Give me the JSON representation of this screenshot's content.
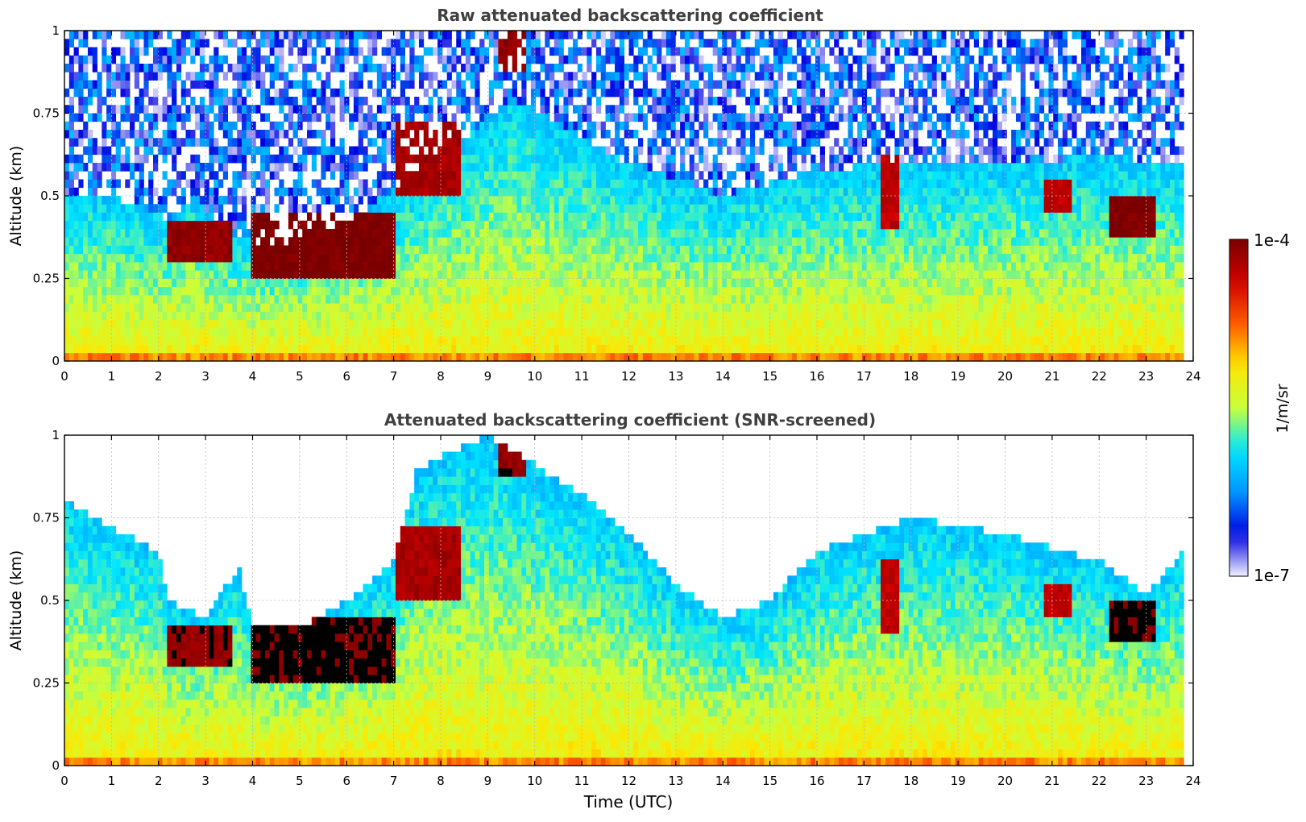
{
  "colors": {
    "title": "#404040",
    "grid": "#bbbbbb",
    "colormap": [
      "#f1f1ff",
      "#0000e0",
      "#0096ff",
      "#00e6ff",
      "#c8ff3c",
      "#ffe600",
      "#ff5a00",
      "#d00000",
      "#7a0000"
    ],
    "saturated": "#000000"
  },
  "chart_data": [
    {
      "type": "heatmap",
      "title": "Raw attenuated backscattering coefficient",
      "xlabel": "",
      "ylabel": "Altitude (km)",
      "xlim": [
        0,
        24
      ],
      "ylim": [
        0,
        1
      ],
      "x_ticks": [
        "0",
        "1",
        "2",
        "3",
        "4",
        "5",
        "6",
        "7",
        "8",
        "9",
        "10",
        "11",
        "12",
        "13",
        "14",
        "15",
        "16",
        "17",
        "18",
        "19",
        "20",
        "21",
        "22",
        "23",
        "24"
      ],
      "y_ticks": [
        "0",
        "0.25",
        "0.5",
        "0.75",
        "1"
      ],
      "grid": true,
      "data_end_hour": 23.8,
      "layer_top_profile": [
        [
          0,
          0.5
        ],
        [
          1,
          0.5
        ],
        [
          2.2,
          0.43
        ],
        [
          2.8,
          0.5
        ],
        [
          3.5,
          0.38
        ],
        [
          4.5,
          0.35
        ],
        [
          6,
          0.42
        ],
        [
          7,
          0.52
        ],
        [
          8.3,
          0.65
        ],
        [
          9.5,
          0.8
        ],
        [
          12,
          0.6
        ],
        [
          14,
          0.5
        ],
        [
          16,
          0.58
        ],
        [
          18,
          0.6
        ],
        [
          20,
          0.6
        ],
        [
          22,
          0.62
        ],
        [
          23.8,
          0.6
        ]
      ],
      "enhanced_layers": [
        {
          "x": [
            2.2,
            3.6
          ],
          "base": 0.3,
          "top": 0.43,
          "value_exp": -4.1
        },
        {
          "x": [
            4.0,
            7.0
          ],
          "base": 0.25,
          "top": 0.45,
          "value_exp": -4.0
        },
        {
          "x": [
            7.0,
            8.4
          ],
          "base": 0.5,
          "top": 0.72,
          "value_exp": -4.2
        },
        {
          "x": [
            9.2,
            9.8
          ],
          "base": 0.88,
          "top": 1.0,
          "value_exp": -4.1
        },
        {
          "x": [
            17.4,
            17.8
          ],
          "base": 0.4,
          "top": 0.62,
          "value_exp": -4.3
        },
        {
          "x": [
            20.8,
            21.4
          ],
          "base": 0.45,
          "top": 0.55,
          "value_exp": -4.3
        },
        {
          "x": [
            22.2,
            23.2
          ],
          "base": 0.38,
          "top": 0.5,
          "value_exp": -4.0
        }
      ],
      "surface_value_exp": -5.2,
      "free_air_value_exp": -6.5,
      "snr_screened": false
    },
    {
      "type": "heatmap",
      "title": "Attenuated backscattering coefficient (SNR-screened)",
      "xlabel": "Time (UTC)",
      "ylabel": "Altitude (km)",
      "xlim": [
        0,
        24
      ],
      "ylim": [
        0,
        1
      ],
      "x_ticks": [
        "0",
        "1",
        "2",
        "3",
        "4",
        "5",
        "6",
        "7",
        "8",
        "9",
        "10",
        "11",
        "12",
        "13",
        "14",
        "15",
        "16",
        "17",
        "18",
        "19",
        "20",
        "21",
        "22",
        "23",
        "24"
      ],
      "y_ticks": [
        "0",
        "0.25",
        "0.5",
        "0.75",
        "1"
      ],
      "grid": true,
      "data_end_hour": 23.8,
      "layer_top_profile": [
        [
          0,
          0.8
        ],
        [
          1,
          0.72
        ],
        [
          2,
          0.65
        ],
        [
          2.2,
          0.5
        ],
        [
          3,
          0.45
        ],
        [
          3.7,
          0.6
        ],
        [
          4,
          0.42
        ],
        [
          5,
          0.42
        ],
        [
          6,
          0.5
        ],
        [
          7,
          0.62
        ],
        [
          7.5,
          0.9
        ],
        [
          9,
          1.0
        ],
        [
          11,
          0.82
        ],
        [
          12,
          0.7
        ],
        [
          13,
          0.55
        ],
        [
          14,
          0.45
        ],
        [
          15,
          0.5
        ],
        [
          16,
          0.65
        ],
        [
          18,
          0.75
        ],
        [
          20,
          0.7
        ],
        [
          22,
          0.62
        ],
        [
          23,
          0.52
        ],
        [
          23.8,
          0.65
        ]
      ],
      "enhanced_layers": [
        {
          "x": [
            2.2,
            3.6
          ],
          "base": 0.3,
          "top": 0.43,
          "value_exp": -4.1
        },
        {
          "x": [
            4.0,
            7.0
          ],
          "base": 0.25,
          "top": 0.45,
          "value_exp": -4.0
        },
        {
          "x": [
            7.0,
            8.4
          ],
          "base": 0.5,
          "top": 0.72,
          "value_exp": -4.2
        },
        {
          "x": [
            9.2,
            9.8
          ],
          "base": 0.88,
          "top": 1.0,
          "value_exp": -4.1
        },
        {
          "x": [
            17.4,
            17.8
          ],
          "base": 0.4,
          "top": 0.62,
          "value_exp": -4.3
        },
        {
          "x": [
            20.8,
            21.4
          ],
          "base": 0.45,
          "top": 0.55,
          "value_exp": -4.3
        },
        {
          "x": [
            22.2,
            23.2
          ],
          "base": 0.38,
          "top": 0.5,
          "value_exp": -4.0
        }
      ],
      "surface_value_exp": -5.2,
      "free_air_value_exp": null,
      "snr_screened": true
    }
  ],
  "colorbar": {
    "max_label": "1e-4",
    "min_label": "1e-7",
    "unit": "1/m/sr",
    "range_exp": [
      -7,
      -4
    ]
  }
}
